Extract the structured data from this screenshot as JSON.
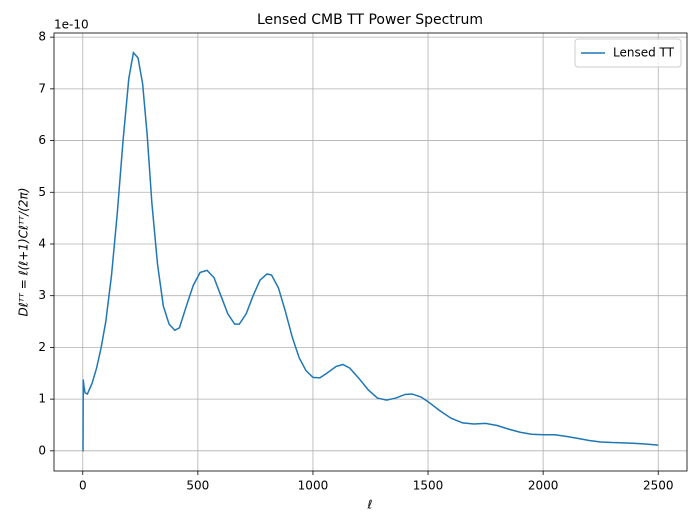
{
  "chart_data": {
    "type": "line",
    "title": "Lensed CMB TT Power Spectrum",
    "xlabel": "ℓ",
    "ylabel": "Dℓᵀᵀ = ℓ(ℓ+1)Cℓᵀᵀ/(2π)",
    "y_offset_label": "1e-10",
    "x": [
      0,
      1,
      2,
      5,
      10,
      20,
      40,
      60,
      80,
      100,
      125,
      150,
      175,
      200,
      220,
      240,
      260,
      280,
      300,
      325,
      350,
      375,
      400,
      420,
      450,
      480,
      510,
      540,
      570,
      600,
      630,
      660,
      680,
      710,
      740,
      770,
      800,
      820,
      850,
      880,
      910,
      940,
      970,
      1000,
      1030,
      1060,
      1100,
      1130,
      1160,
      1200,
      1240,
      1280,
      1320,
      1360,
      1400,
      1430,
      1470,
      1500,
      1550,
      1600,
      1650,
      1700,
      1750,
      1800,
      1850,
      1900,
      1950,
      2000,
      2050,
      2100,
      2150,
      2200,
      2250,
      2300,
      2350,
      2400,
      2450,
      2500
    ],
    "series": [
      {
        "name": "Lensed TT",
        "color": "#1f77b4",
        "values": [
          0,
          0,
          1.38,
          1.25,
          1.12,
          1.1,
          1.3,
          1.6,
          2.0,
          2.5,
          3.4,
          4.6,
          6.0,
          7.2,
          7.7,
          7.6,
          7.1,
          6.1,
          4.8,
          3.6,
          2.8,
          2.45,
          2.33,
          2.38,
          2.8,
          3.2,
          3.45,
          3.49,
          3.35,
          3.0,
          2.65,
          2.45,
          2.45,
          2.65,
          3.0,
          3.3,
          3.42,
          3.4,
          3.15,
          2.7,
          2.2,
          1.8,
          1.55,
          1.42,
          1.41,
          1.5,
          1.63,
          1.67,
          1.6,
          1.4,
          1.18,
          1.02,
          0.98,
          1.02,
          1.09,
          1.1,
          1.04,
          0.95,
          0.78,
          0.63,
          0.54,
          0.52,
          0.53,
          0.49,
          0.42,
          0.36,
          0.32,
          0.31,
          0.31,
          0.28,
          0.24,
          0.2,
          0.17,
          0.16,
          0.155,
          0.145,
          0.13,
          0.11
        ]
      }
    ],
    "xlim": [
      -125,
      2625
    ],
    "ylim": [
      -0.39,
      8.08
    ],
    "xticks": [
      0,
      500,
      1000,
      1500,
      2000,
      2500
    ],
    "yticks": [
      0,
      1,
      2,
      3,
      4,
      5,
      6,
      7,
      8
    ],
    "grid": true,
    "legend": "upper right"
  }
}
